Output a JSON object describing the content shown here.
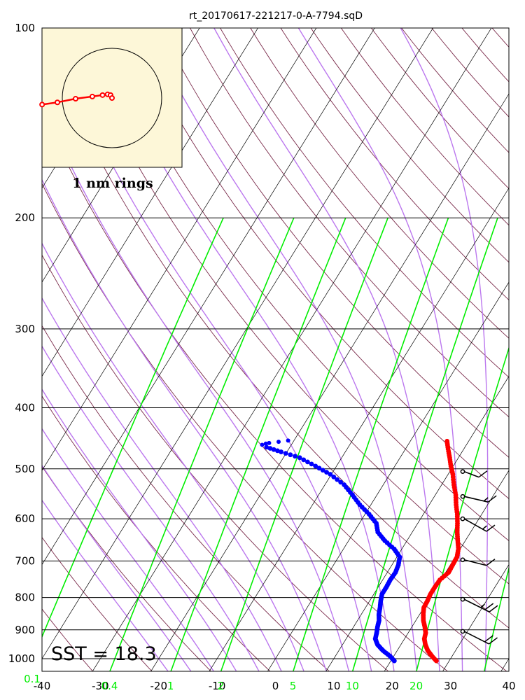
{
  "title": "rt_20170617-221217-0-A-7794.sqD",
  "sst_label": "SST = 18.3",
  "hodograph": {
    "ring_label": "1 nm rings",
    "background": "#fdf7d8",
    "trace_color": "#ff0000",
    "points": [
      [
        -9.6,
        -0.9
      ],
      [
        -7.5,
        -0.6
      ],
      [
        -5.0,
        -0.1
      ],
      [
        -2.7,
        0.2
      ],
      [
        -1.3,
        0.4
      ],
      [
        -0.6,
        0.5
      ],
      [
        -0.2,
        0.4
      ],
      [
        0.0,
        0.0
      ]
    ]
  },
  "colors": {
    "temperature": "#ff0000",
    "dewpoint": "#0000ff",
    "isotherm": "#000000",
    "dry_adiabat": "#7a2a4a",
    "moist_adiabat": "#bb77ee",
    "mixing_ratio": "#00ee00",
    "isobar": "#000000"
  },
  "chart_data": {
    "type": "skew-t log-p",
    "title": "rt_20170617-221217-0-A-7794.sqD",
    "y_axis": {
      "scale": "log",
      "range": [
        1050,
        100
      ],
      "ticks": [
        100,
        200,
        300,
        400,
        500,
        600,
        700,
        800,
        900,
        1000
      ]
    },
    "x_axis": {
      "range": [
        -40,
        40
      ],
      "ticks": [
        -40,
        -30,
        -20,
        -10,
        0,
        10,
        20,
        30,
        40
      ]
    },
    "mixing_ratio_labels": [
      0.1,
      0.4,
      1,
      2,
      5,
      10,
      20
    ],
    "temperature_series": {
      "name": "Temperature",
      "pressure": [
        1008,
        990,
        970,
        950,
        930,
        910,
        890,
        870,
        850,
        830,
        810,
        790,
        770,
        750,
        730,
        710,
        690,
        670,
        650,
        630,
        610,
        590,
        570,
        550,
        530,
        510,
        495,
        480,
        465,
        452
      ],
      "temperature": [
        27.8,
        26.5,
        25.2,
        24.2,
        23.4,
        23.0,
        22.2,
        21.3,
        20.6,
        20.0,
        19.9,
        19.7,
        19.7,
        19.8,
        20.5,
        20.4,
        20.3,
        19.7,
        18.7,
        17.7,
        16.8,
        15.8,
        14.6,
        13.5,
        12.1,
        10.8,
        9.6,
        8.5,
        7.3,
        6.3
      ]
    },
    "dewpoint_series": {
      "name": "Dewpoint",
      "pressure": [
        1008,
        990,
        970,
        950,
        930,
        910,
        890,
        870,
        850,
        830,
        810,
        790,
        770,
        750,
        730,
        710,
        690,
        670,
        650,
        630,
        610,
        590,
        570,
        550,
        530,
        510,
        495,
        480,
        470,
        462,
        458,
        456,
        455,
        453,
        451
      ],
      "dewpoint": [
        20.6,
        19.3,
        17.5,
        16.0,
        15.0,
        14.6,
        14.1,
        13.7,
        13.0,
        12.5,
        11.9,
        11.4,
        11.4,
        11.3,
        11.4,
        11.1,
        10.5,
        8.7,
        6.2,
        4.1,
        2.9,
        0.7,
        -1.9,
        -4.2,
        -6.7,
        -10.2,
        -13.6,
        -17.2,
        -21.0,
        -24.0,
        -25.0,
        -24.5,
        -24.0,
        -22.5,
        -21.0
      ]
    },
    "wind_barbs": [
      {
        "pressure": 505,
        "speed_kt": 10,
        "direction_deg": 330
      },
      {
        "pressure": 553,
        "speed_kt": 15,
        "direction_deg": 290
      },
      {
        "pressure": 600,
        "speed_kt": 15,
        "direction_deg": 240
      },
      {
        "pressure": 697,
        "speed_kt": 10,
        "direction_deg": 300
      },
      {
        "pressure": 805,
        "speed_kt": 25,
        "direction_deg": 270
      },
      {
        "pressure": 905,
        "speed_kt": 20,
        "direction_deg": 260
      }
    ]
  }
}
